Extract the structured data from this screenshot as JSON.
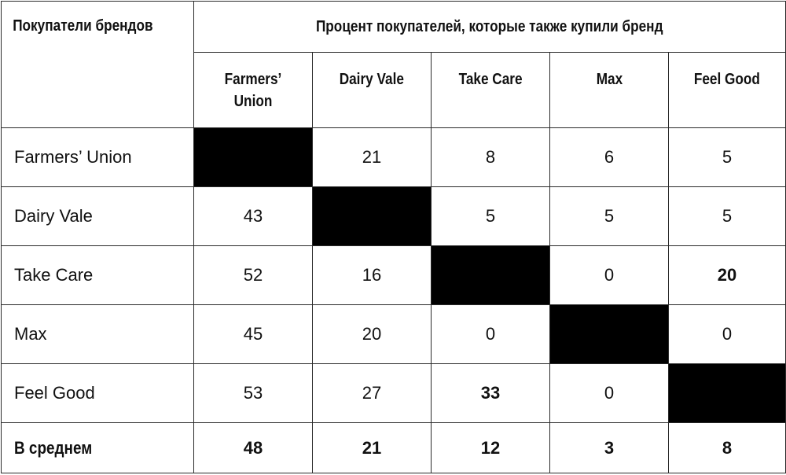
{
  "table": {
    "corner_header": "Покупатели брендов",
    "span_header": "Процент покупателей, которые также купили бренд",
    "column_headers": [
      "Farmers’ Union",
      "Dairy Vale",
      "Take Care",
      "Max",
      "Feel Good"
    ],
    "rows": [
      {
        "label": "Farmers’ Union",
        "values": [
          "",
          "21",
          "8",
          "6",
          "5"
        ]
      },
      {
        "label": "Dairy Vale",
        "values": [
          "43",
          "",
          "5",
          "5",
          "5"
        ]
      },
      {
        "label": "Take Care",
        "values": [
          "52",
          "16",
          "",
          "0",
          "20"
        ]
      },
      {
        "label": "Max",
        "values": [
          "45",
          "20",
          "0",
          "",
          "0"
        ]
      },
      {
        "label": "Feel Good",
        "values": [
          "53",
          "27",
          "33",
          "0",
          ""
        ]
      }
    ],
    "average": {
      "label": "В среднем",
      "values": [
        "48",
        "21",
        "12",
        "3",
        "8"
      ]
    }
  },
  "colors": {
    "border": "#2a2a2a",
    "diagonal_fill": "#000000",
    "background": "#ffffff"
  }
}
